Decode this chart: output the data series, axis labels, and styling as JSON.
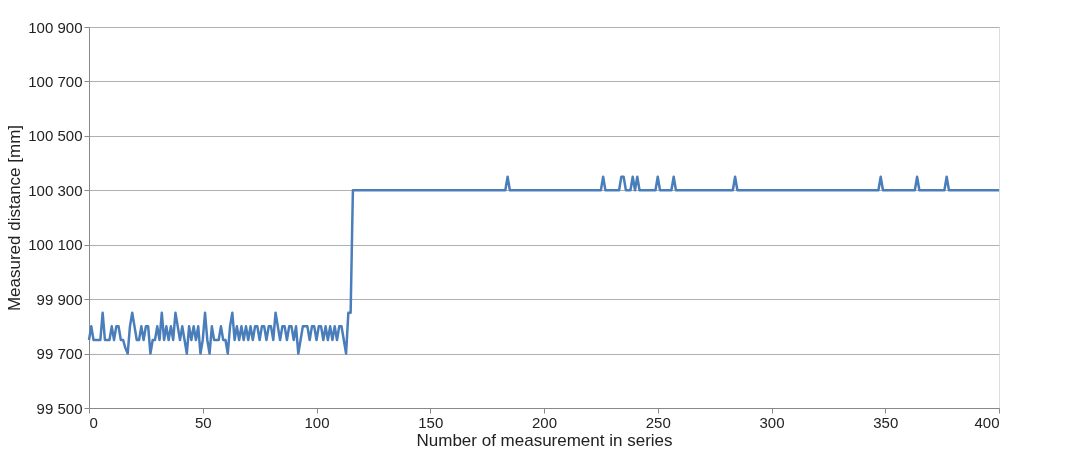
{
  "chart_data": {
    "type": "line",
    "xlabel": "Number of measurement in series",
    "ylabel": "Measured distance [mm]",
    "x": [
      0,
      1,
      2,
      3,
      4,
      5,
      6,
      7,
      8,
      9,
      10,
      11,
      12,
      13,
      14,
      15,
      16,
      17,
      18,
      19,
      20,
      21,
      22,
      23,
      24,
      25,
      26,
      27,
      28,
      29,
      30,
      31,
      32,
      33,
      34,
      35,
      36,
      37,
      38,
      39,
      40,
      41,
      42,
      43,
      44,
      45,
      46,
      47,
      48,
      49,
      50,
      51,
      52,
      53,
      54,
      55,
      56,
      57,
      58,
      59,
      60,
      61,
      62,
      63,
      64,
      65,
      66,
      67,
      68,
      69,
      70,
      71,
      72,
      73,
      74,
      75,
      76,
      77,
      78,
      79,
      80,
      81,
      82,
      83,
      84,
      85,
      86,
      87,
      88,
      89,
      90,
      91,
      92,
      93,
      94,
      95,
      96,
      97,
      98,
      99,
      100,
      101,
      102,
      103,
      104,
      105,
      106,
      107,
      108,
      109,
      110,
      111,
      112,
      113,
      114,
      115,
      116,
      117,
      183,
      184,
      185,
      225,
      226,
      227,
      233,
      234,
      235,
      236,
      238,
      239,
      240,
      241,
      242,
      243,
      249,
      250,
      251,
      256,
      257,
      258,
      283,
      284,
      285,
      347,
      348,
      349,
      363,
      364,
      365,
      376,
      377,
      378,
      400
    ],
    "series": [
      {
        "color": "#4a7ebb",
        "values": [
          99750,
          99800,
          99750,
          99750,
          99750,
          99750,
          99850,
          99750,
          99750,
          99750,
          99800,
          99750,
          99800,
          99800,
          99750,
          99750,
          99720,
          99700,
          99800,
          99850,
          99800,
          99750,
          99750,
          99800,
          99750,
          99800,
          99800,
          99700,
          99750,
          99750,
          99800,
          99750,
          99850,
          99750,
          99800,
          99750,
          99800,
          99750,
          99850,
          99800,
          99750,
          99800,
          99750,
          99700,
          99800,
          99750,
          99800,
          99750,
          99800,
          99700,
          99750,
          99850,
          99750,
          99700,
          99800,
          99750,
          99750,
          99750,
          99800,
          99750,
          99750,
          99700,
          99800,
          99850,
          99750,
          99800,
          99750,
          99800,
          99750,
          99800,
          99750,
          99800,
          99750,
          99800,
          99800,
          99750,
          99800,
          99800,
          99750,
          99800,
          99800,
          99750,
          99850,
          99800,
          99750,
          99800,
          99800,
          99750,
          99800,
          99800,
          99750,
          99800,
          99700,
          99750,
          99800,
          99800,
          99800,
          99750,
          99800,
          99800,
          99750,
          99800,
          99800,
          99750,
          99800,
          99750,
          99800,
          99750,
          99800,
          99750,
          99800,
          99800,
          99750,
          99700,
          99850,
          99850,
          100300,
          100300,
          100300,
          100350,
          100300,
          100300,
          100350,
          100300,
          100300,
          100350,
          100350,
          100300,
          100300,
          100350,
          100300,
          100350,
          100300,
          100300,
          100300,
          100350,
          100300,
          100300,
          100350,
          100300,
          100300,
          100350,
          100300,
          100300,
          100350,
          100300,
          100300,
          100350,
          100300,
          100300,
          100350,
          100300,
          100300
        ]
      }
    ],
    "xlim": [
      0,
      400
    ],
    "xticks": [
      0,
      50,
      100,
      150,
      200,
      250,
      300,
      350,
      400
    ],
    "ylim": [
      99500,
      100900
    ],
    "yticks": [
      {
        "value": 99500,
        "label": "99 500"
      },
      {
        "value": 99700,
        "label": "99 700"
      },
      {
        "value": 99900,
        "label": "99 900"
      },
      {
        "value": 100100,
        "label": "100 100"
      },
      {
        "value": 100300,
        "label": "100 300"
      },
      {
        "value": 100500,
        "label": "100 500"
      },
      {
        "value": 100700,
        "label": "100 700"
      },
      {
        "value": 100900,
        "label": "100 900"
      }
    ],
    "grid": "y",
    "marker": "none",
    "line_style": "solid"
  }
}
